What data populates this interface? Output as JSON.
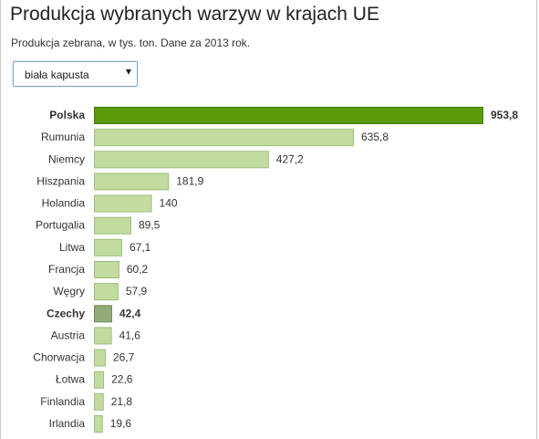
{
  "header": {
    "title": "Produkcja wybranych warzyw w krajach UE",
    "subtitle": "Produkcja zebrana, w tys. ton. Dane za 2013 rok."
  },
  "selector": {
    "selected": "biała kapusta",
    "icon": "chevron-down-icon"
  },
  "chart_data": {
    "type": "bar",
    "orientation": "horizontal",
    "title": "Produkcja wybranych warzyw w krajach UE",
    "subtitle": "Produkcja zebrana, w tys. ton. Dane za 2013 rok.",
    "xlabel": "",
    "ylabel": "",
    "categories": [
      "Polska",
      "Rumunia",
      "Niemcy",
      "Hiszpania",
      "Holandia",
      "Portugalia",
      "Litwa",
      "Francja",
      "Węgry",
      "Czechy",
      "Austria",
      "Chorwacja",
      "Łotwa",
      "Finlandia",
      "Irlandia"
    ],
    "values": [
      953.8,
      635.8,
      427.2,
      181.9,
      140,
      89.5,
      67.1,
      60.2,
      57.9,
      42.4,
      41.6,
      26.7,
      22.6,
      21.8,
      19.6
    ],
    "value_labels": [
      "953,8",
      "635,8",
      "427,2",
      "181,9",
      "140",
      "89,5",
      "67,1",
      "60,2",
      "57,9",
      "42,4",
      "41,6",
      "26,7",
      "22,6",
      "21,8",
      "19,6"
    ],
    "highlighted": [
      "Polska",
      "Czechy"
    ],
    "xlim": [
      0,
      953.8
    ],
    "grid": false,
    "legend": "none",
    "colors": {
      "default": "#c2dca0",
      "default_border": "#9cbd78",
      "Polska": "#5a9a08",
      "Polska_border": "#3f7a00",
      "Czechy": "#92ab78",
      "Czechy_border": "#6e8a55"
    }
  }
}
